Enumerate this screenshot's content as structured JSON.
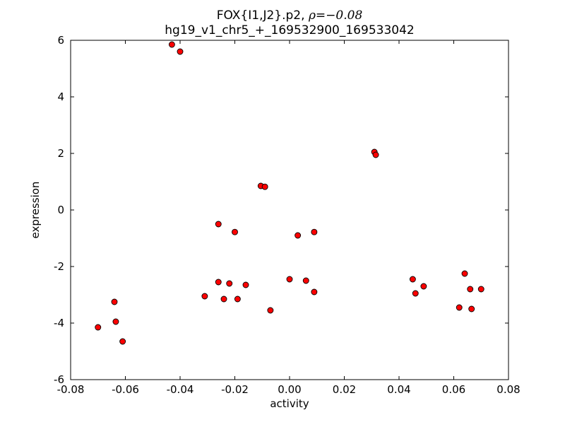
{
  "chart_data": {
    "type": "scatter",
    "title_prefix": "FOX{I1,J2}.p2, ",
    "title_math": "ρ=−0.08",
    "title_line2": "hg19_v1_chr5_+_169532900_169533042",
    "xlabel": "activity",
    "ylabel": "expression",
    "xlim": [
      -0.08,
      0.08
    ],
    "ylim": [
      -6,
      6
    ],
    "xticks": [
      -0.08,
      -0.06,
      -0.04,
      -0.02,
      0.0,
      0.02,
      0.04,
      0.06,
      0.08
    ],
    "yticks": [
      -6,
      -4,
      -2,
      0,
      2,
      4,
      6
    ],
    "grid": false,
    "legend": "none",
    "marker": "circle",
    "marker_color": "#ff0000",
    "marker_edge_color": "#000000",
    "points": [
      [
        -0.043,
        5.85
      ],
      [
        -0.04,
        5.6
      ],
      [
        0.031,
        2.05
      ],
      [
        0.0315,
        1.95
      ],
      [
        -0.0105,
        0.85
      ],
      [
        -0.009,
        0.82
      ],
      [
        -0.026,
        -0.5
      ],
      [
        -0.02,
        -0.78
      ],
      [
        0.003,
        -0.9
      ],
      [
        0.009,
        -0.78
      ],
      [
        -0.031,
        -3.05
      ],
      [
        -0.026,
        -2.55
      ],
      [
        -0.022,
        -2.6
      ],
      [
        -0.024,
        -3.15
      ],
      [
        -0.019,
        -3.15
      ],
      [
        -0.016,
        -2.65
      ],
      [
        -0.007,
        -3.55
      ],
      [
        0.0,
        -2.45
      ],
      [
        0.006,
        -2.5
      ],
      [
        0.009,
        -2.9
      ],
      [
        -0.07,
        -4.15
      ],
      [
        -0.064,
        -3.25
      ],
      [
        -0.0635,
        -3.95
      ],
      [
        -0.061,
        -4.65
      ],
      [
        0.045,
        -2.45
      ],
      [
        0.046,
        -2.95
      ],
      [
        0.049,
        -2.7
      ],
      [
        0.062,
        -3.45
      ],
      [
        0.064,
        -2.25
      ],
      [
        0.066,
        -2.8
      ],
      [
        0.0665,
        -3.5
      ],
      [
        0.07,
        -2.8
      ]
    ]
  }
}
